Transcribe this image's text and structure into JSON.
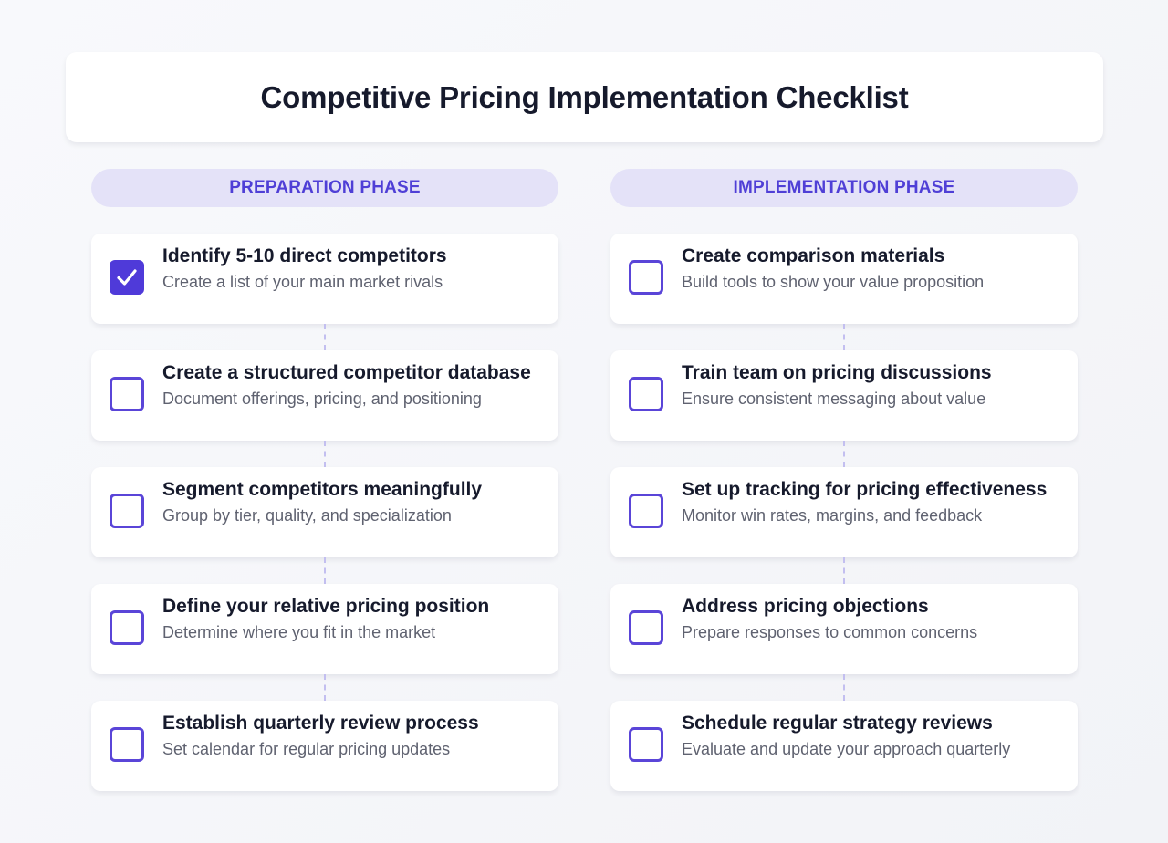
{
  "header": {
    "title": "Competitive Pricing Implementation Checklist"
  },
  "colors": {
    "accent": "#4f3ad9",
    "pill_bg": "#e4e2f8",
    "pill_text": "#4f3fd6"
  },
  "phases": [
    {
      "label": "PREPARATION PHASE",
      "items": [
        {
          "title": "Identify 5-10 direct competitors",
          "description": "Create a list of your main market rivals",
          "checked": true
        },
        {
          "title": "Create a structured competitor database",
          "description": "Document offerings, pricing, and positioning",
          "checked": false
        },
        {
          "title": "Segment competitors meaningfully",
          "description": "Group by tier, quality, and specialization",
          "checked": false
        },
        {
          "title": "Define your relative pricing position",
          "description": "Determine where you fit in the market",
          "checked": false
        },
        {
          "title": "Establish quarterly review process",
          "description": "Set calendar for regular pricing updates",
          "checked": false
        }
      ]
    },
    {
      "label": "IMPLEMENTATION PHASE",
      "items": [
        {
          "title": "Create comparison materials",
          "description": "Build tools to show your value proposition",
          "checked": false
        },
        {
          "title": "Train team on pricing discussions",
          "description": "Ensure consistent messaging about value",
          "checked": false
        },
        {
          "title": "Set up tracking for pricing effectiveness",
          "description": "Monitor win rates, margins, and feedback",
          "checked": false
        },
        {
          "title": "Address pricing objections",
          "description": "Prepare responses to common concerns",
          "checked": false
        },
        {
          "title": "Schedule regular strategy reviews",
          "description": "Evaluate and update your approach quarterly",
          "checked": false
        }
      ]
    }
  ]
}
